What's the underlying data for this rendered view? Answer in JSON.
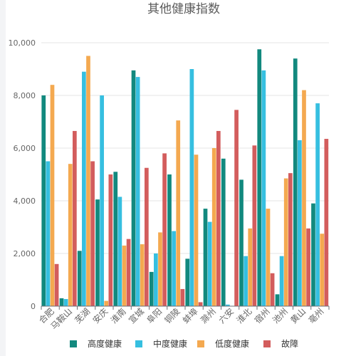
{
  "chart_data": {
    "type": "bar",
    "title": "其他健康指数",
    "categories": [
      "合肥",
      "马鞍山",
      "芜湖",
      "安庆",
      "淮南",
      "宣城",
      "阜阳",
      "铜陵",
      "蚌埠",
      "滁州",
      "六安",
      "淮北",
      "宿州",
      "池州",
      "黄山",
      "亳州"
    ],
    "ylim": [
      0,
      10000
    ],
    "yticks": [
      "0",
      "2,000",
      "4,000",
      "6,000",
      "8,000",
      "10,000"
    ],
    "legend_position": "bottom",
    "grid": true,
    "series": [
      {
        "name": "高度健康",
        "color": "#12897e",
        "values": [
          8000,
          300,
          2100,
          4050,
          5100,
          8950,
          1300,
          5000,
          1800,
          3700,
          5600,
          4800,
          9750,
          450,
          9400,
          3900
        ]
      },
      {
        "name": "中度健康",
        "color": "#36bfe0",
        "values": [
          5500,
          270,
          8900,
          8000,
          4150,
          8700,
          2000,
          2850,
          9000,
          3200,
          60,
          1900,
          8950,
          1900,
          6300,
          7700
        ]
      },
      {
        "name": "低度健康",
        "color": "#f4a950",
        "values": [
          8400,
          5400,
          9500,
          200,
          2300,
          2350,
          2800,
          7050,
          5750,
          6000,
          0,
          2950,
          3700,
          4850,
          8200,
          2750
        ]
      },
      {
        "name": "故障",
        "color": "#d35d5d",
        "values": [
          1600,
          6650,
          5500,
          5000,
          2550,
          5250,
          5800,
          650,
          150,
          6650,
          7450,
          6100,
          1250,
          5050,
          2950,
          6350
        ]
      }
    ]
  }
}
